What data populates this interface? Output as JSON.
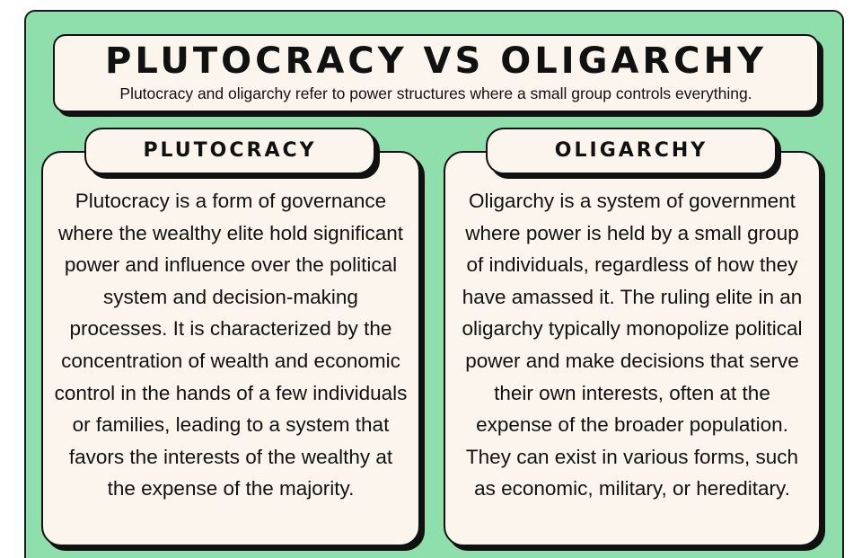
{
  "header": {
    "title": "PLUTOCRACY VS OLIGARCHY",
    "subtitle": "Plutocracy and oligarchy refer to power structures where a small group controls everything."
  },
  "plutocracy": {
    "heading": "PLUTOCRACY",
    "text": "Plutocracy is a form of governance where the wealthy elite hold significant power and influence over the political system and decision-making processes. It is characterized by the concentration of wealth and economic control in the hands of a few individuals or families, leading to a system that favors the interests of the wealthy at the expense of the majority."
  },
  "oligarchy": {
    "heading": "OLIGARCHY",
    "text": "Oligarchy is a system of government where power is held by a small group of individuals, regardless of how they have amassed it. The ruling elite in an oligarchy typically monopolize political power and make decisions that serve their own interests, often at the expense of the broader population. They can exist in various forms, such as economic, military, or hereditary."
  },
  "colors": {
    "background": "#8fdfac",
    "card": "#fcf5ee",
    "outline": "#111111"
  }
}
